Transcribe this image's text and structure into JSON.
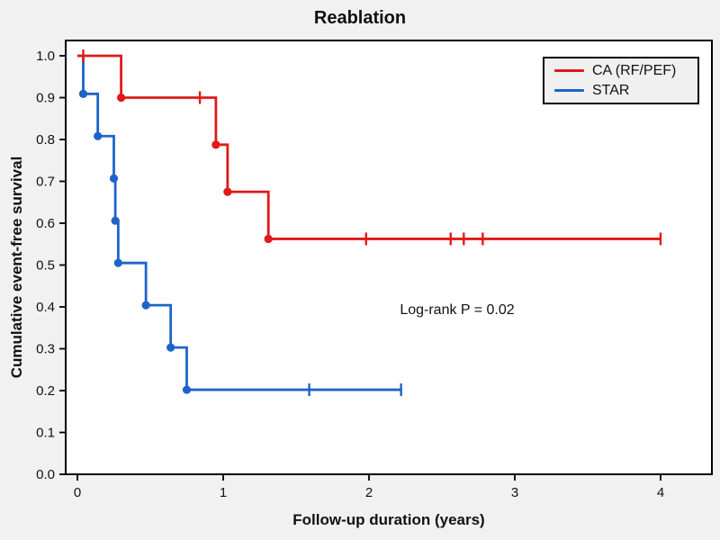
{
  "chart_data": {
    "type": "line",
    "subtype": "kaplan-meier-step-curve",
    "title": "Reablation",
    "xlabel": "Follow-up duration (years)",
    "ylabel": "Cumulative event-free survival",
    "annotation": {
      "text": "Log-rank P = 0.02",
      "x_years": 2.6,
      "y_survival": 0.39
    },
    "xlim": [
      -0.08,
      4.35
    ],
    "ylim": [
      0.0,
      1.04
    ],
    "x_ticks": [
      0,
      1,
      2,
      3,
      4
    ],
    "y_ticks": [
      {
        "value": 0.0,
        "label": "0.0"
      },
      {
        "value": 0.1,
        "label": "0.1"
      },
      {
        "value": 0.2,
        "label": "0.2"
      },
      {
        "value": 0.3,
        "label": "0.3"
      },
      {
        "value": 0.4,
        "label": "0.4"
      },
      {
        "value": 0.5,
        "label": "0.5"
      },
      {
        "value": 0.6,
        "label": "0.6"
      },
      {
        "value": 0.7,
        "label": "0.7"
      },
      {
        "value": 0.8,
        "label": "0.8"
      },
      {
        "value": 0.9,
        "label": "0.9"
      },
      {
        "value": 1.0,
        "label": "1.0"
      }
    ],
    "grid": false,
    "legend_position": "top-right",
    "series": [
      {
        "name": "CA (RF/PEF)",
        "color": "#e11919",
        "start": [
          0,
          1.0
        ],
        "steps": [
          [
            0,
            1.0
          ],
          [
            0.3,
            0.9
          ],
          [
            0.95,
            0.7875
          ],
          [
            1.03,
            0.675
          ],
          [
            1.31,
            0.5625
          ]
        ],
        "end_x": 4.0,
        "censors": [
          [
            0.04,
            1.0
          ],
          [
            0.84,
            0.9
          ],
          [
            1.98,
            0.5625
          ],
          [
            2.56,
            0.5625
          ],
          [
            2.65,
            0.5625
          ],
          [
            2.78,
            0.5625
          ],
          [
            4.0,
            0.5625
          ]
        ]
      },
      {
        "name": "STAR",
        "color": "#1e64c8",
        "start": [
          0,
          1.0
        ],
        "steps": [
          [
            0,
            1.0
          ],
          [
            0.04,
            0.909
          ],
          [
            0.14,
            0.808
          ],
          [
            0.25,
            0.707
          ],
          [
            0.26,
            0.606
          ],
          [
            0.28,
            0.505
          ],
          [
            0.47,
            0.404
          ],
          [
            0.64,
            0.303
          ],
          [
            0.75,
            0.202
          ]
        ],
        "end_x": 2.22,
        "censors": [
          [
            1.59,
            0.202
          ],
          [
            2.22,
            0.202
          ]
        ]
      }
    ],
    "colors": {
      "background": "#f1f1f2",
      "plot_background": "#ffffff",
      "axis": "#000000",
      "text": "#111111"
    }
  }
}
